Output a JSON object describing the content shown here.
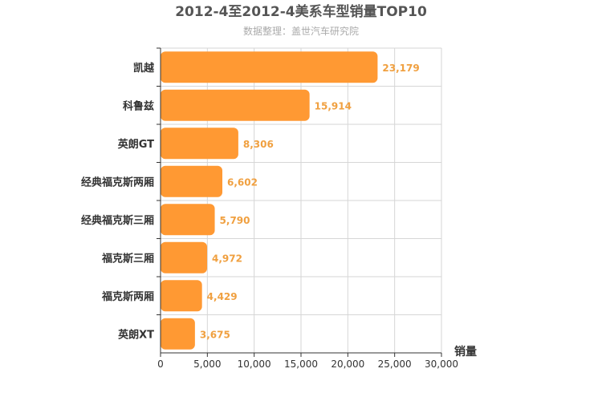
{
  "chart_data": {
    "type": "bar",
    "orientation": "horizontal",
    "title": "2012-4至2012-4美系车型销量TOP10",
    "subtitle": "数据整理：盖世汽车研究院",
    "xlabel": "销量",
    "ylabel": "",
    "xlim": [
      0,
      30000
    ],
    "xticks": [
      "0",
      "5,000",
      "10,000",
      "15,000",
      "20,000",
      "25,000",
      "30,000"
    ],
    "grid": true,
    "legend": "none",
    "bar_color": "#ff9933",
    "label_color": "#f0a040",
    "categories": [
      "凯越",
      "科鲁兹",
      "英朗GT",
      "经典福克斯两厢",
      "经典福克斯三厢",
      "福克斯三厢",
      "福克斯两厢",
      "英朗XT"
    ],
    "values": [
      23179,
      15914,
      8306,
      6602,
      5790,
      4972,
      4429,
      3675
    ],
    "value_labels": [
      "23,179",
      "15,914",
      "8,306",
      "6,602",
      "5,790",
      "4,972",
      "4,429",
      "3,675"
    ]
  }
}
